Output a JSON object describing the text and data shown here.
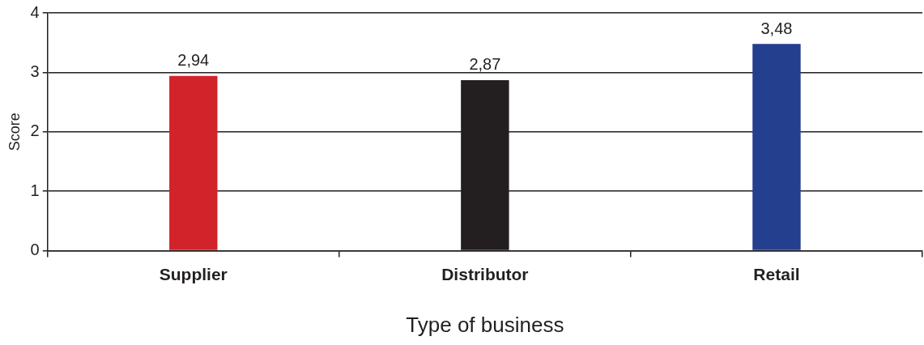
{
  "chart_data": {
    "type": "bar",
    "xlabel": "Type of business",
    "ylabel": "Score",
    "categories": [
      "Supplier",
      "Distributor",
      "Retail"
    ],
    "values": [
      2.94,
      2.87,
      3.48
    ],
    "colors": [
      "#d2232a",
      "#231f20",
      "#253f8f"
    ],
    "value_labels": [
      "2,94",
      "2,87",
      "3,48"
    ],
    "ylim": [
      0,
      4
    ],
    "yticks": [
      0,
      1,
      2,
      3,
      4
    ],
    "grid": "y",
    "legend": false
  }
}
